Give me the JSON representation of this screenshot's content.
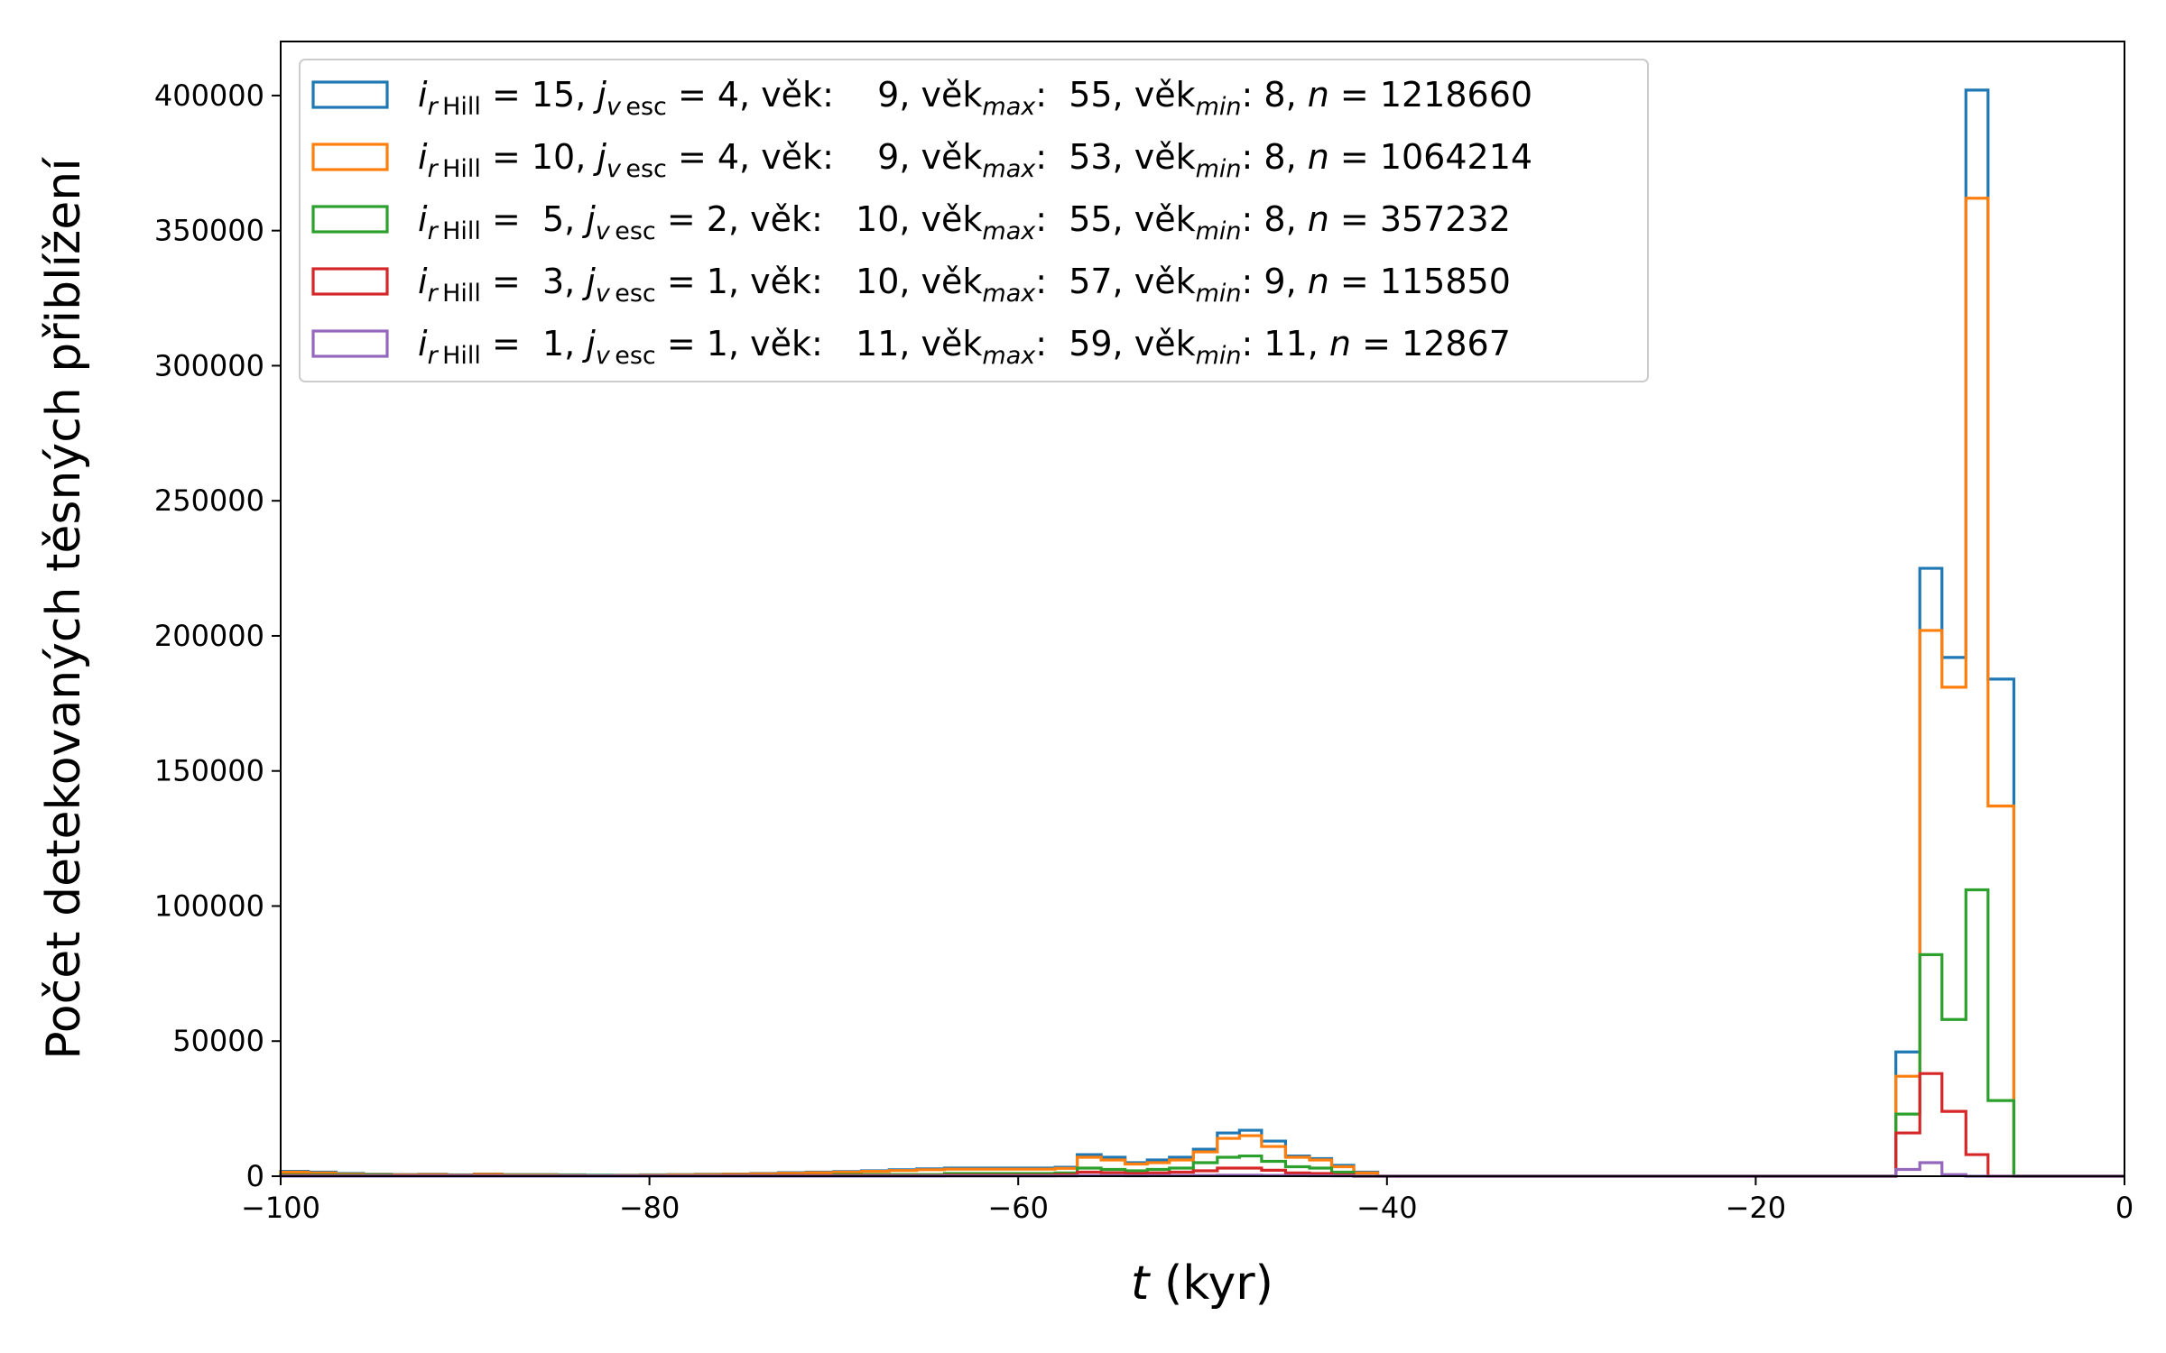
{
  "chart_data": {
    "type": "histogram-step",
    "xlabel_var": "t",
    "xlabel_unit": " (kyr)",
    "ylabel": "Počet detekovaných těsných přiblížení",
    "xlim": [
      -100,
      0
    ],
    "ylim": [
      0,
      420000
    ],
    "xticks": [
      -100,
      -80,
      -60,
      -40,
      -20,
      0
    ],
    "xtick_labels": [
      "−100",
      "−80",
      "−60",
      "−40",
      "−20",
      "0"
    ],
    "yticks": [
      0,
      50000,
      100000,
      150000,
      200000,
      250000,
      300000,
      350000,
      400000
    ],
    "ytick_labels": [
      "0",
      "50000",
      "100000",
      "150000",
      "200000",
      "250000",
      "300000",
      "350000",
      "400000"
    ],
    "legend_position": "upper left",
    "series": [
      {
        "color": "#1f77b4",
        "legend": {
          "r": "15",
          "v": "4",
          "vek": "  9",
          "vmax": "55",
          "vmin": "8",
          "n": "1218660"
        },
        "edges": [
          -100,
          -98.5,
          -97,
          -95.5,
          -94,
          -92.5,
          -91,
          -89.5,
          -88,
          -86.5,
          -85,
          -83.5,
          -82,
          -80.5,
          -79,
          -77.5,
          -76,
          -74.5,
          -73,
          -71.5,
          -70,
          -68.5,
          -67,
          -65.5,
          -64,
          -62.5,
          -61,
          -59.5,
          -58,
          -56.8,
          -55.5,
          -54.2,
          -53,
          -51.8,
          -50.5,
          -49.2,
          -48,
          -46.8,
          -45.5,
          -44.2,
          -43,
          -41.8,
          -40.5,
          -39,
          -12.4,
          -11.1,
          -9.9,
          -8.6,
          -7.4,
          -6,
          0
        ],
        "values": [
          1800,
          1500,
          1000,
          700,
          600,
          700,
          500,
          800,
          600,
          600,
          500,
          400,
          400,
          500,
          600,
          700,
          800,
          1000,
          1300,
          1500,
          1700,
          2000,
          2400,
          2700,
          3000,
          3000,
          3000,
          3000,
          3300,
          8000,
          7000,
          5000,
          6000,
          7000,
          10000,
          16000,
          17000,
          13000,
          7500,
          6500,
          4000,
          1500,
          0,
          0,
          46000,
          225000,
          192000,
          402000,
          184000,
          0
        ]
      },
      {
        "color": "#ff7f0e",
        "legend": {
          "r": "10",
          "v": "4",
          "vek": "  9",
          "vmax": "53",
          "vmin": "8",
          "n": "1064214"
        },
        "edges": [
          -100,
          -98.5,
          -97,
          -95.5,
          -94,
          -92.5,
          -91,
          -89.5,
          -88,
          -86.5,
          -85,
          -83.5,
          -82,
          -80.5,
          -79,
          -77.5,
          -76,
          -74.5,
          -73,
          -71.5,
          -70,
          -68.5,
          -67,
          -65.5,
          -64,
          -62.5,
          -61,
          -59.5,
          -58,
          -56.8,
          -55.5,
          -54.2,
          -53,
          -51.8,
          -50.5,
          -49.2,
          -48,
          -46.8,
          -45.5,
          -44.2,
          -43,
          -41.8,
          -40.5,
          -39,
          -12.4,
          -11.1,
          -9.9,
          -8.6,
          -7.4,
          -6,
          0
        ],
        "values": [
          1500,
          1200,
          800,
          600,
          500,
          600,
          400,
          700,
          500,
          500,
          400,
          300,
          300,
          400,
          500,
          600,
          700,
          900,
          1100,
          1300,
          1500,
          1800,
          2100,
          2400,
          2600,
          2600,
          2600,
          2600,
          2900,
          7000,
          6000,
          4500,
          5000,
          6000,
          9000,
          14000,
          15000,
          11000,
          7000,
          6000,
          3500,
          1200,
          0,
          0,
          37000,
          202000,
          181000,
          362000,
          137000,
          0
        ]
      },
      {
        "color": "#2ca02c",
        "legend": {
          "r": " 5",
          "v": "2",
          "vek": " 10",
          "vmax": "55",
          "vmin": "8",
          "n": "357232"
        },
        "edges": [
          -100,
          -94,
          -88,
          -82,
          -76,
          -70,
          -64,
          -58,
          -56.8,
          -55.5,
          -54.2,
          -53,
          -51.8,
          -50.5,
          -49.2,
          -48,
          -46.8,
          -45.5,
          -44.2,
          -43,
          -41.8,
          -40.5,
          -12.4,
          -11.1,
          -9.9,
          -8.6,
          -7.4,
          -6,
          0
        ],
        "values": [
          500,
          300,
          300,
          200,
          300,
          600,
          1000,
          1200,
          3000,
          2500,
          2000,
          2500,
          3000,
          5000,
          7000,
          7500,
          5500,
          3500,
          3000,
          1500,
          0,
          0,
          23000,
          82000,
          58000,
          106000,
          28000,
          0
        ]
      },
      {
        "color": "#d62728",
        "legend": {
          "r": " 3",
          "v": "1",
          "vek": " 10",
          "vmax": "57",
          "vmin": "9",
          "n": "115850"
        },
        "edges": [
          -100,
          -88,
          -76,
          -64,
          -58,
          -56.8,
          -55.5,
          -54.2,
          -53,
          -51.8,
          -50.5,
          -49.2,
          -48,
          -46.8,
          -45.5,
          -44.2,
          -43,
          -41.8,
          -40.5,
          -12.4,
          -11.1,
          -9.9,
          -8.6,
          -7.4,
          -6,
          0
        ],
        "values": [
          200,
          150,
          200,
          400,
          600,
          1500,
          1300,
          1000,
          1200,
          1500,
          2000,
          3000,
          3000,
          2200,
          1200,
          1000,
          500,
          0,
          0,
          16000,
          38000,
          24000,
          8000,
          0,
          0
        ]
      },
      {
        "color": "#9467bd",
        "legend": {
          "r": " 1",
          "v": "1",
          "vek": " 11",
          "vmax": "59",
          "vmin": "11",
          "n": "12867"
        },
        "edges": [
          -100,
          -64,
          -58,
          -56.8,
          -55.5,
          -54.2,
          -53,
          -51.8,
          -50.5,
          -49.2,
          -48,
          -46.8,
          -45.5,
          -44.2,
          -43,
          -41.8,
          -40.5,
          -12.4,
          -11.1,
          -9.9,
          -8.6,
          -7.4,
          -6,
          0
        ],
        "values": [
          50,
          80,
          100,
          200,
          200,
          150,
          200,
          250,
          300,
          400,
          400,
          300,
          200,
          150,
          100,
          0,
          0,
          2500,
          5000,
          600,
          0,
          0,
          0
        ]
      }
    ]
  }
}
